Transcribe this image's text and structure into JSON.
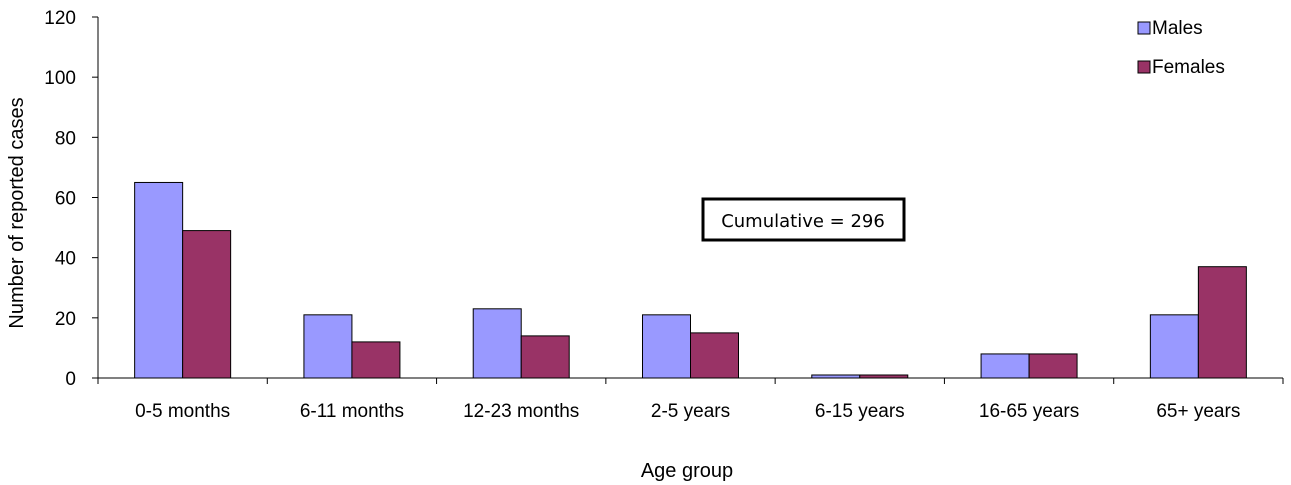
{
  "chart_data": {
    "type": "bar",
    "categories": [
      "0-5 months",
      "6-11 months",
      "12-23 months",
      "2-5 years",
      "6-15 years",
      "16-65 years",
      "65+ years"
    ],
    "series": [
      {
        "name": "Males",
        "values": [
          65,
          21,
          23,
          21,
          1,
          8,
          21
        ],
        "color": "#9999FF"
      },
      {
        "name": "Females",
        "values": [
          49,
          12,
          14,
          15,
          1,
          8,
          37
        ],
        "color": "#993366"
      }
    ],
    "xlabel": "Age group",
    "ylabel": "Number of reported cases",
    "ylim": [
      0,
      120
    ],
    "yticks": [
      "0",
      "20",
      "40",
      "60",
      "80",
      "100",
      "120"
    ],
    "grid": false,
    "legend": "top-right",
    "annotation": "Cumulative = 296"
  }
}
